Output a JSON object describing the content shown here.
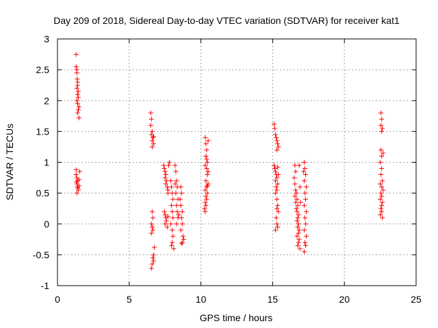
{
  "chart_data": {
    "type": "scatter",
    "title": "Day 209 of 2018, Sidereal Day-to-day VTEC variation (SDTVAR) for receiver kat1",
    "xlabel": "GPS time / hours",
    "ylabel": "SDTVAR / TECUs",
    "xlim": [
      0,
      25
    ],
    "ylim": [
      -1,
      3
    ],
    "xticks": [
      "0",
      "5",
      "10",
      "15",
      "20",
      "25"
    ],
    "yticks": [
      "-1",
      "-0.5",
      "0",
      "0.5",
      "1",
      "1.5",
      "2",
      "2.5",
      "3"
    ],
    "grid": true,
    "marker": "+",
    "color": "#ff0000",
    "series": [
      {
        "name": "SDTVAR",
        "points": [
          [
            1.3,
            2.75
          ],
          [
            1.3,
            2.55
          ],
          [
            1.35,
            2.5
          ],
          [
            1.35,
            2.45
          ],
          [
            1.4,
            2.3
          ],
          [
            1.35,
            2.2
          ],
          [
            1.4,
            2.1
          ],
          [
            1.45,
            2.05
          ],
          [
            1.35,
            2.0
          ],
          [
            1.4,
            1.95
          ],
          [
            1.5,
            1.9
          ],
          [
            1.45,
            1.85
          ],
          [
            1.4,
            1.8
          ],
          [
            1.5,
            1.72
          ],
          [
            1.4,
            2.25
          ],
          [
            1.45,
            2.15
          ],
          [
            1.38,
            2.35
          ],
          [
            1.3,
            0.88
          ],
          [
            1.3,
            0.8
          ],
          [
            1.35,
            0.75
          ],
          [
            1.4,
            0.7
          ],
          [
            1.35,
            0.65
          ],
          [
            1.4,
            0.6
          ],
          [
            1.5,
            0.62
          ],
          [
            1.45,
            0.55
          ],
          [
            1.35,
            0.5
          ],
          [
            1.5,
            0.72
          ],
          [
            1.55,
            0.85
          ],
          [
            1.42,
            0.58
          ],
          [
            1.32,
            0.68
          ],
          [
            6.5,
            1.8
          ],
          [
            6.55,
            1.7
          ],
          [
            6.5,
            1.6
          ],
          [
            6.6,
            1.5
          ],
          [
            6.55,
            1.45
          ],
          [
            6.65,
            1.4
          ],
          [
            6.6,
            1.35
          ],
          [
            6.7,
            1.3
          ],
          [
            6.6,
            1.25
          ],
          [
            6.7,
            1.42
          ],
          [
            6.6,
            0.2
          ],
          [
            6.65,
            0.1
          ],
          [
            6.55,
            0.0
          ],
          [
            6.6,
            -0.05
          ],
          [
            6.65,
            -0.1
          ],
          [
            6.55,
            -0.15
          ],
          [
            6.75,
            -0.38
          ],
          [
            6.7,
            -0.5
          ],
          [
            6.65,
            -0.55
          ],
          [
            6.7,
            -0.6
          ],
          [
            6.6,
            -0.65
          ],
          [
            6.55,
            -0.72
          ],
          [
            7.4,
            0.95
          ],
          [
            7.45,
            0.9
          ],
          [
            7.5,
            0.85
          ],
          [
            7.55,
            0.8
          ],
          [
            7.5,
            0.75
          ],
          [
            7.6,
            0.7
          ],
          [
            7.55,
            0.65
          ],
          [
            7.65,
            0.6
          ],
          [
            7.7,
            0.55
          ],
          [
            7.75,
            0.95
          ],
          [
            7.8,
            1.0
          ],
          [
            7.7,
            0.5
          ],
          [
            7.45,
            0.2
          ],
          [
            7.5,
            0.15
          ],
          [
            7.55,
            0.1
          ],
          [
            7.6,
            0.05
          ],
          [
            7.5,
            0.0
          ],
          [
            7.65,
            -0.05
          ],
          [
            7.7,
            0.12
          ],
          [
            7.9,
            0.7
          ],
          [
            7.95,
            0.6
          ],
          [
            8.0,
            0.5
          ],
          [
            8.05,
            0.4
          ],
          [
            7.95,
            0.3
          ],
          [
            8.0,
            0.2
          ],
          [
            8.05,
            0.1
          ],
          [
            7.9,
            0.0
          ],
          [
            8.0,
            -0.1
          ],
          [
            8.05,
            -0.2
          ],
          [
            8.0,
            -0.3
          ],
          [
            8.1,
            -0.4
          ],
          [
            7.95,
            -0.35
          ],
          [
            8.2,
            0.95
          ],
          [
            8.25,
            0.85
          ],
          [
            8.3,
            0.7
          ],
          [
            8.35,
            0.6
          ],
          [
            8.25,
            0.5
          ],
          [
            8.4,
            0.4
          ],
          [
            8.3,
            0.3
          ],
          [
            8.35,
            0.2
          ],
          [
            8.4,
            0.1
          ],
          [
            8.3,
            0.0
          ],
          [
            8.45,
            0.15
          ],
          [
            8.2,
            0.65
          ],
          [
            8.6,
            0.6
          ],
          [
            8.65,
            0.5
          ],
          [
            8.55,
            0.4
          ],
          [
            8.6,
            0.3
          ],
          [
            8.7,
            0.2
          ],
          [
            8.65,
            0.1
          ],
          [
            8.7,
            0.0
          ],
          [
            8.6,
            -0.1
          ],
          [
            8.75,
            -0.2
          ],
          [
            8.7,
            -0.3
          ],
          [
            8.8,
            -0.25
          ],
          [
            8.65,
            -0.32
          ],
          [
            10.3,
            1.4
          ],
          [
            10.35,
            1.3
          ],
          [
            10.4,
            1.2
          ],
          [
            10.35,
            1.1
          ],
          [
            10.45,
            1.0
          ],
          [
            10.3,
            0.95
          ],
          [
            10.4,
            0.9
          ],
          [
            10.5,
            0.85
          ],
          [
            10.45,
            0.8
          ],
          [
            10.35,
            0.7
          ],
          [
            10.5,
            0.65
          ],
          [
            10.4,
            0.6
          ],
          [
            10.3,
            0.55
          ],
          [
            10.45,
            0.5
          ],
          [
            10.35,
            0.45
          ],
          [
            10.4,
            0.4
          ],
          [
            10.3,
            0.35
          ],
          [
            10.35,
            0.3
          ],
          [
            10.25,
            0.25
          ],
          [
            10.3,
            0.2
          ],
          [
            10.5,
            1.35
          ],
          [
            10.4,
            1.05
          ],
          [
            10.45,
            0.62
          ],
          [
            15.1,
            1.62
          ],
          [
            15.15,
            1.55
          ],
          [
            15.2,
            1.45
          ],
          [
            15.25,
            1.4
          ],
          [
            15.3,
            1.35
          ],
          [
            15.35,
            1.3
          ],
          [
            15.4,
            1.25
          ],
          [
            15.3,
            1.2
          ],
          [
            15.1,
            0.95
          ],
          [
            15.15,
            0.9
          ],
          [
            15.2,
            0.85
          ],
          [
            15.25,
            0.8
          ],
          [
            15.3,
            0.75
          ],
          [
            15.2,
            0.7
          ],
          [
            15.35,
            0.65
          ],
          [
            15.25,
            0.6
          ],
          [
            15.3,
            0.55
          ],
          [
            15.2,
            0.5
          ],
          [
            15.4,
            0.8
          ],
          [
            15.35,
            0.92
          ],
          [
            15.3,
            0.4
          ],
          [
            15.35,
            0.3
          ],
          [
            15.4,
            0.2
          ],
          [
            15.25,
            0.1
          ],
          [
            15.3,
            0.0
          ],
          [
            15.35,
            -0.05
          ],
          [
            15.2,
            -0.1
          ],
          [
            15.3,
            0.25
          ],
          [
            16.55,
            0.95
          ],
          [
            16.6,
            0.85
          ],
          [
            16.5,
            0.75
          ],
          [
            16.55,
            0.65
          ],
          [
            16.6,
            0.55
          ],
          [
            16.65,
            0.5
          ],
          [
            16.55,
            0.45
          ],
          [
            16.7,
            0.4
          ],
          [
            16.6,
            0.35
          ],
          [
            16.75,
            0.3
          ],
          [
            16.65,
            0.25
          ],
          [
            16.7,
            0.2
          ],
          [
            16.8,
            0.15
          ],
          [
            16.75,
            0.1
          ],
          [
            16.7,
            0.05
          ],
          [
            16.8,
            0.0
          ],
          [
            16.75,
            -0.05
          ],
          [
            16.85,
            -0.1
          ],
          [
            16.8,
            -0.15
          ],
          [
            16.7,
            -0.2
          ],
          [
            16.85,
            -0.25
          ],
          [
            16.8,
            -0.3
          ],
          [
            16.75,
            -0.35
          ],
          [
            16.9,
            -0.4
          ],
          [
            16.85,
            0.95
          ],
          [
            16.9,
            0.6
          ],
          [
            16.95,
            0.35
          ],
          [
            17.2,
            1.0
          ],
          [
            17.25,
            0.9
          ],
          [
            17.3,
            0.8
          ],
          [
            17.2,
            0.7
          ],
          [
            17.35,
            0.6
          ],
          [
            17.25,
            0.5
          ],
          [
            17.3,
            0.4
          ],
          [
            17.2,
            0.3
          ],
          [
            17.35,
            0.2
          ],
          [
            17.25,
            0.1
          ],
          [
            17.3,
            0.0
          ],
          [
            17.2,
            -0.1
          ],
          [
            17.35,
            -0.2
          ],
          [
            17.25,
            -0.3
          ],
          [
            17.3,
            -0.35
          ],
          [
            17.2,
            -0.45
          ],
          [
            17.15,
            0.85
          ],
          [
            22.55,
            1.8
          ],
          [
            22.6,
            1.7
          ],
          [
            22.55,
            1.6
          ],
          [
            22.65,
            1.55
          ],
          [
            22.6,
            1.5
          ],
          [
            22.55,
            1.2
          ],
          [
            22.6,
            1.1
          ],
          [
            22.5,
            1.0
          ],
          [
            22.6,
            0.9
          ],
          [
            22.55,
            0.8
          ],
          [
            22.65,
            0.7
          ],
          [
            22.6,
            0.6
          ],
          [
            22.55,
            0.5
          ],
          [
            22.6,
            0.45
          ],
          [
            22.5,
            0.4
          ],
          [
            22.65,
            0.35
          ],
          [
            22.6,
            0.3
          ],
          [
            22.55,
            0.25
          ],
          [
            22.6,
            0.2
          ],
          [
            22.5,
            0.15
          ],
          [
            22.65,
            0.1
          ],
          [
            22.7,
            1.15
          ],
          [
            22.7,
            0.55
          ],
          [
            22.5,
            0.65
          ]
        ]
      }
    ]
  }
}
